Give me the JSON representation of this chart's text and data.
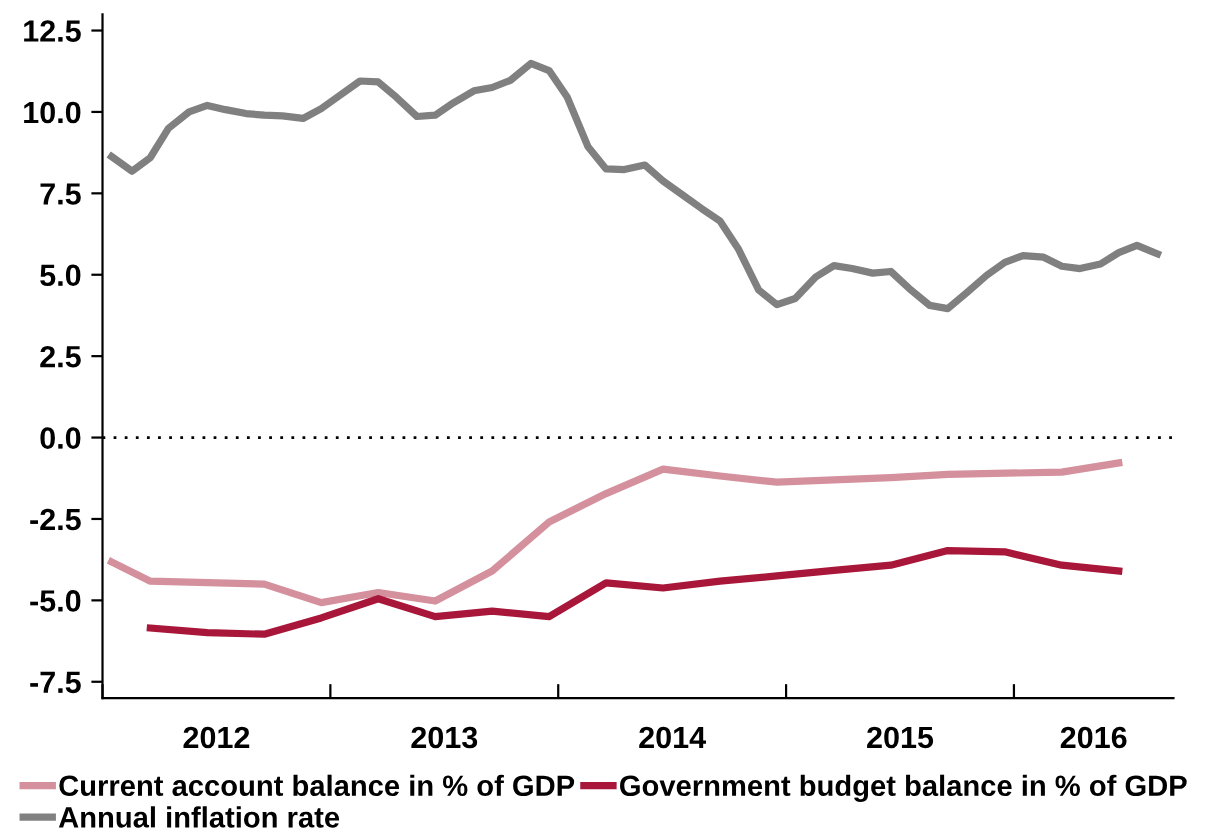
{
  "chart_data": {
    "type": "line",
    "series": [
      {
        "name": "Current account balance in % of GDP",
        "color": "#d4909c",
        "x": [
          2012.04,
          2012.21,
          2012.71,
          2012.96,
          2013.21,
          2013.46,
          2013.71,
          2013.96,
          2014.21,
          2014.46,
          2014.71,
          2014.96,
          2015.46,
          2015.71,
          2016.21,
          2016.46
        ],
        "values": [
          -3.82,
          -4.41,
          -4.5,
          -5.07,
          -4.76,
          -5.02,
          -4.1,
          -2.59,
          -1.72,
          -0.97,
          -1.18,
          -1.37,
          -1.23,
          -1.13,
          -1.06,
          -0.78
        ]
      },
      {
        "name": "Government budget balance in % of GDP",
        "color": "#a8173a",
        "x": [
          2012.21,
          2012.46,
          2012.71,
          2012.96,
          2013.21,
          2013.46,
          2013.71,
          2013.96,
          2014.21,
          2014.46,
          2014.71,
          2014.96,
          2015.21,
          2015.46,
          2015.71,
          2015.96,
          2016.21,
          2016.46
        ],
        "values": [
          -5.85,
          -5.99,
          -6.04,
          -5.54,
          -4.95,
          -5.5,
          -5.33,
          -5.5,
          -4.46,
          -4.62,
          -4.41,
          -4.25,
          -4.08,
          -3.92,
          -3.47,
          -3.51,
          -3.92,
          -4.1
        ]
      },
      {
        "name": "Annual inflation rate",
        "color": "#808080",
        "x": [
          2012.04,
          2012.13,
          2012.21,
          2012.29,
          2012.38,
          2012.46,
          2012.54,
          2012.63,
          2012.71,
          2012.79,
          2012.88,
          2012.96,
          2013.04,
          2013.13,
          2013.21,
          2013.29,
          2013.38,
          2013.46,
          2013.54,
          2013.63,
          2013.71,
          2013.79,
          2013.88,
          2013.96,
          2014.04,
          2014.13,
          2014.21,
          2014.29,
          2014.38,
          2014.46,
          2014.54,
          2014.63,
          2014.71,
          2014.79,
          2014.88,
          2014.96,
          2015.04,
          2015.13,
          2015.21,
          2015.29,
          2015.38,
          2015.46,
          2015.54,
          2015.63,
          2015.71,
          2015.79,
          2015.88,
          2015.96,
          2016.04,
          2016.13,
          2016.21,
          2016.29,
          2016.38,
          2016.46,
          2016.54,
          2016.63
        ],
        "values": [
          8.63,
          8.18,
          8.6,
          9.5,
          10.0,
          10.2,
          10.07,
          9.95,
          9.9,
          9.88,
          9.8,
          10.1,
          10.5,
          10.95,
          10.92,
          10.45,
          9.86,
          9.9,
          10.28,
          10.65,
          10.75,
          10.97,
          11.49,
          11.27,
          10.45,
          8.94,
          8.25,
          8.23,
          8.37,
          7.88,
          7.48,
          7.03,
          6.65,
          5.8,
          4.53,
          4.08,
          4.27,
          4.93,
          5.28,
          5.19,
          5.05,
          5.1,
          4.58,
          4.06,
          3.96,
          4.43,
          4.98,
          5.38,
          5.59,
          5.54,
          5.26,
          5.19,
          5.33,
          5.68,
          5.9,
          5.64
        ]
      }
    ],
    "xlim": [
      2012,
      2016.7
    ],
    "xticks": [
      {
        "value": 2012,
        "label": null
      },
      {
        "value": 2012.5,
        "label": "2012"
      },
      {
        "value": 2013,
        "label": null
      },
      {
        "value": 2013.5,
        "label": "2013"
      },
      {
        "value": 2014,
        "label": null
      },
      {
        "value": 2014.5,
        "label": "2014"
      },
      {
        "value": 2015,
        "label": null
      },
      {
        "value": 2015.5,
        "label": "2015"
      },
      {
        "value": 2016,
        "label": null
      },
      {
        "value": 2016.35,
        "label": "2016"
      }
    ],
    "ylim": [
      -8,
      13
    ],
    "yticks": [
      {
        "value": -7.5,
        "label": "-7.5"
      },
      {
        "value": -5,
        "label": "-5.0"
      },
      {
        "value": -2.5,
        "label": "-2.5"
      },
      {
        "value": 0,
        "label": "0.0"
      },
      {
        "value": 2.5,
        "label": "2.5"
      },
      {
        "value": 5,
        "label": "5.0"
      },
      {
        "value": 7.5,
        "label": "7.5"
      },
      {
        "value": 10,
        "label": "10.0"
      },
      {
        "value": 12.5,
        "label": "12.5"
      }
    ],
    "ref_lines": [
      {
        "axis": "y",
        "value": 0,
        "color": "#000000",
        "line_style": "dotted"
      }
    ],
    "grid": false,
    "legend": "bottom",
    "line_style": "solid"
  }
}
